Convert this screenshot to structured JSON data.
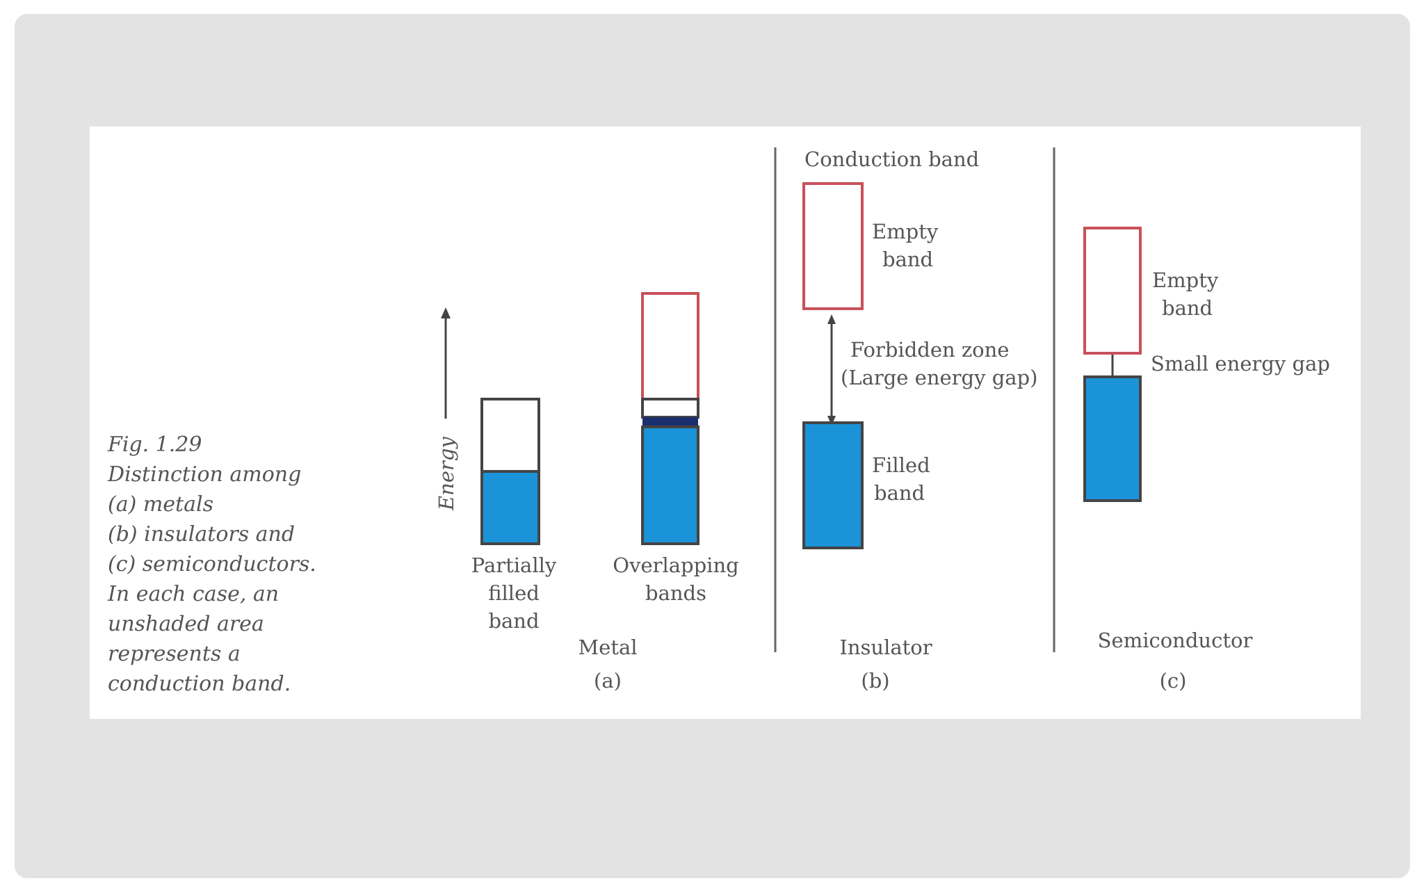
{
  "caption": {
    "lines": [
      "Fig. 1.29",
      "Distinction among",
      "(a) metals",
      "(b) insulators and",
      "(c) semiconductors.",
      "In each case, an",
      "unshaded area",
      "represents a",
      "conduction band."
    ]
  },
  "axis": {
    "label": "Energy"
  },
  "metal": {
    "band_a_label": [
      "Partially",
      "filled",
      "band"
    ],
    "band_b_label": [
      "Overlapping",
      "bands"
    ],
    "title": "Metal",
    "sub": "(a)"
  },
  "insulator": {
    "top_label": "Conduction band",
    "empty_label": [
      "Empty",
      "band"
    ],
    "gap_label": [
      "Forbidden zone",
      "(Large energy gap)"
    ],
    "filled_label": [
      "Filled",
      "band"
    ],
    "title": "Insulator",
    "sub": "(b)"
  },
  "semiconductor": {
    "empty_label": [
      "Empty",
      "band"
    ],
    "gap_label": "Small energy gap",
    "title": "Semiconductor",
    "sub": "(c)"
  },
  "colors": {
    "filled": "#1b93d9",
    "empty_outline": "#c9505a",
    "outline": "#444444",
    "divider": "#666666"
  }
}
